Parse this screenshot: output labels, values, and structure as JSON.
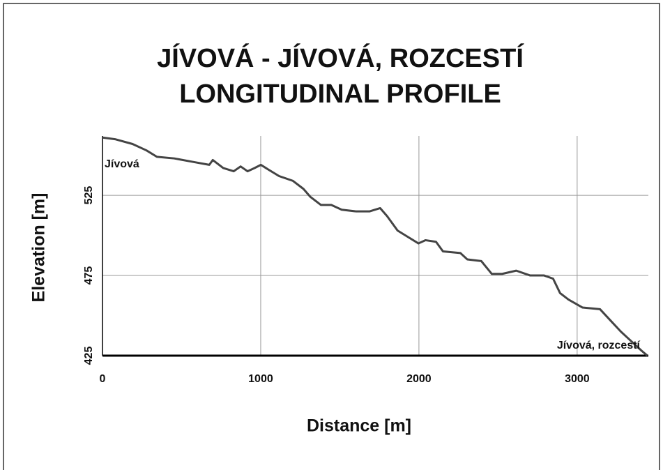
{
  "chart_data": {
    "type": "line",
    "title": [
      "JÍVOVÁ - JÍVOVÁ, ROZCESTÍ",
      "LONGITUDINAL  PROFILE"
    ],
    "x_label": "Distance  [m]",
    "y_label": "Elevation  [m]",
    "annotations": [
      "Jívová",
      "Jívová, rozcestí"
    ],
    "xlim": [
      0,
      3450
    ],
    "ylim": [
      425,
      562
    ],
    "xticks": [
      0,
      1000,
      2000,
      3000
    ],
    "yticks": [
      425,
      475,
      525
    ],
    "grid": true,
    "series": [
      {
        "color": "#444444",
        "x": [
          0,
          79,
          190,
          278,
          344,
          454,
          564,
          675,
          697,
          763,
          829,
          873,
          917,
          961,
          1001,
          1049,
          1116,
          1204,
          1270,
          1314,
          1380,
          1446,
          1512,
          1600,
          1689,
          1755,
          1799,
          1865,
          1931,
          1997,
          2041,
          2108,
          2152,
          2262,
          2306,
          2394,
          2460,
          2526,
          2615,
          2703,
          2791,
          2848,
          2892,
          2945,
          3034,
          3144,
          3210,
          3276,
          3342,
          3408,
          3444
        ],
        "values": [
          561,
          560,
          557,
          553,
          549,
          548,
          546,
          544,
          547,
          542,
          540,
          543,
          540,
          542,
          544,
          541,
          537,
          534,
          529,
          524,
          519,
          519,
          516,
          515,
          515,
          517,
          512,
          503,
          499,
          495,
          497,
          496,
          490,
          489,
          485,
          484,
          476,
          476,
          478,
          475,
          475,
          473,
          464,
          460,
          455,
          454,
          447,
          440,
          434,
          428,
          425
        ]
      }
    ]
  }
}
